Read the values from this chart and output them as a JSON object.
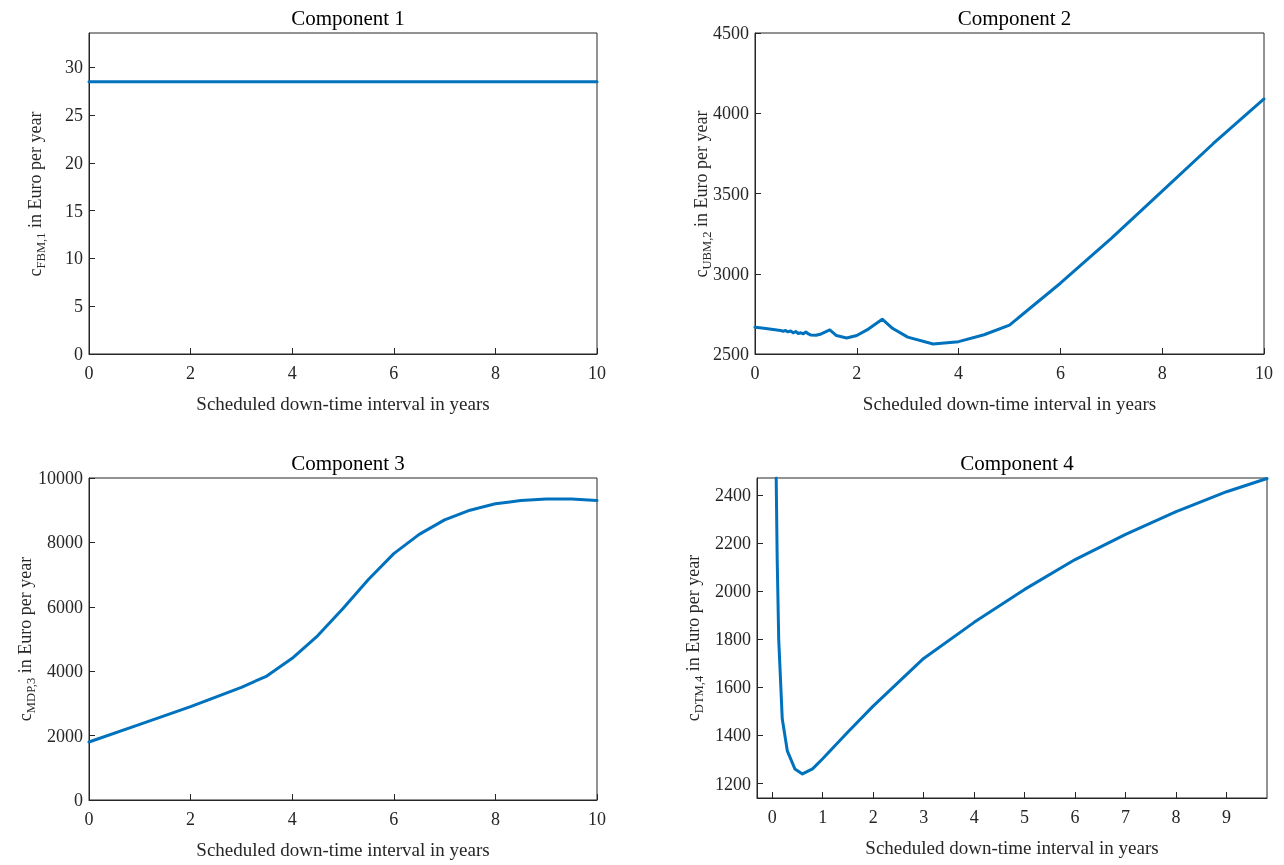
{
  "chart_data": [
    {
      "type": "line",
      "title": "Component 1",
      "xlabel": "Scheduled down-time interval in years",
      "ylabel": "c$_{FBM,1}$ in Euro per year",
      "xlim": [
        0,
        10
      ],
      "xticks": [
        0,
        2,
        4,
        6,
        8,
        10
      ],
      "ylim": [
        0,
        33.6
      ],
      "yticks": [
        0,
        5,
        10,
        15,
        20,
        25,
        30
      ],
      "series": [
        {
          "color": "#0072bd",
          "x": [
            0,
            2,
            4,
            6,
            8,
            10
          ],
          "values": [
            28.5,
            28.5,
            28.5,
            28.5,
            28.5,
            28.5
          ]
        }
      ]
    },
    {
      "type": "line",
      "title": "Component 2",
      "xlabel": "Scheduled down-time interval in years",
      "ylabel": "c$_{UBM,2}$ in Euro per year",
      "xlim": [
        0,
        10
      ],
      "xticks": [
        0,
        2,
        4,
        6,
        8,
        10
      ],
      "ylim": [
        2500,
        4500
      ],
      "yticks": [
        2500,
        3000,
        3500,
        4000,
        4500
      ],
      "series": [
        {
          "color": "#0072bd",
          "x": [
            0,
            0.25,
            0.5,
            0.55,
            0.6,
            0.65,
            0.7,
            0.75,
            0.8,
            0.85,
            0.9,
            0.95,
            1.0,
            1.05,
            1.1,
            1.2,
            1.3,
            1.47,
            1.6,
            1.8,
            2.0,
            2.2,
            2.5,
            2.7,
            3.0,
            3.5,
            4,
            4.5,
            5,
            6,
            7,
            8,
            9,
            10
          ],
          "values": [
            2667,
            2657,
            2647,
            2642,
            2646,
            2638,
            2643,
            2632,
            2640,
            2628,
            2632,
            2626,
            2637,
            2625,
            2618,
            2617,
            2625,
            2650,
            2615,
            2600,
            2615,
            2650,
            2717,
            2660,
            2605,
            2562,
            2577,
            2620,
            2680,
            2941,
            3221,
            3515,
            3810,
            4089
          ]
        }
      ]
    },
    {
      "type": "line",
      "title": "Component 3",
      "xlabel": "Scheduled down-time interval in years",
      "ylabel": "c$_{MDP,3}$ in Euro per year",
      "xlim": [
        0,
        10
      ],
      "xticks": [
        0,
        2,
        4,
        6,
        8,
        10
      ],
      "ylim": [
        0,
        10000
      ],
      "yticks": [
        0,
        2000,
        4000,
        6000,
        8000,
        10000
      ],
      "series": [
        {
          "color": "#0072bd",
          "x": [
            0,
            1,
            2,
            3,
            3.5,
            4,
            4.5,
            5,
            5.5,
            6,
            6.5,
            7,
            7.5,
            8,
            8.5,
            9,
            9.5,
            10
          ],
          "values": [
            1800,
            2350,
            2900,
            3500,
            3850,
            4400,
            5100,
            5950,
            6850,
            7650,
            8250,
            8700,
            9000,
            9200,
            9300,
            9350,
            9350,
            9300
          ]
        }
      ]
    },
    {
      "type": "line",
      "title": "Component 4",
      "xlabel": "Scheduled down-time interval in years",
      "ylabel": "c$_{DTM,4}$ in Euro per year",
      "xlim": [
        -0.3,
        9.8
      ],
      "xticks": [
        0,
        1,
        2,
        3,
        4,
        5,
        6,
        7,
        8,
        9
      ],
      "ylim": [
        1140,
        2470
      ],
      "yticks": [
        1200,
        1400,
        1600,
        1800,
        2000,
        2200,
        2400
      ],
      "series": [
        {
          "color": "#0072bd",
          "x": [
            0.08,
            0.1,
            0.13,
            0.2,
            0.3,
            0.45,
            0.6,
            0.8,
            1,
            1.5,
            2,
            3,
            4,
            5,
            6,
            7,
            8,
            9,
            9.8
          ],
          "values": [
            2470,
            2132,
            1800,
            1469,
            1336,
            1261,
            1240,
            1261,
            1303,
            1414,
            1522,
            1720,
            1870,
            2007,
            2131,
            2236,
            2330,
            2413,
            2468
          ]
        }
      ]
    }
  ]
}
